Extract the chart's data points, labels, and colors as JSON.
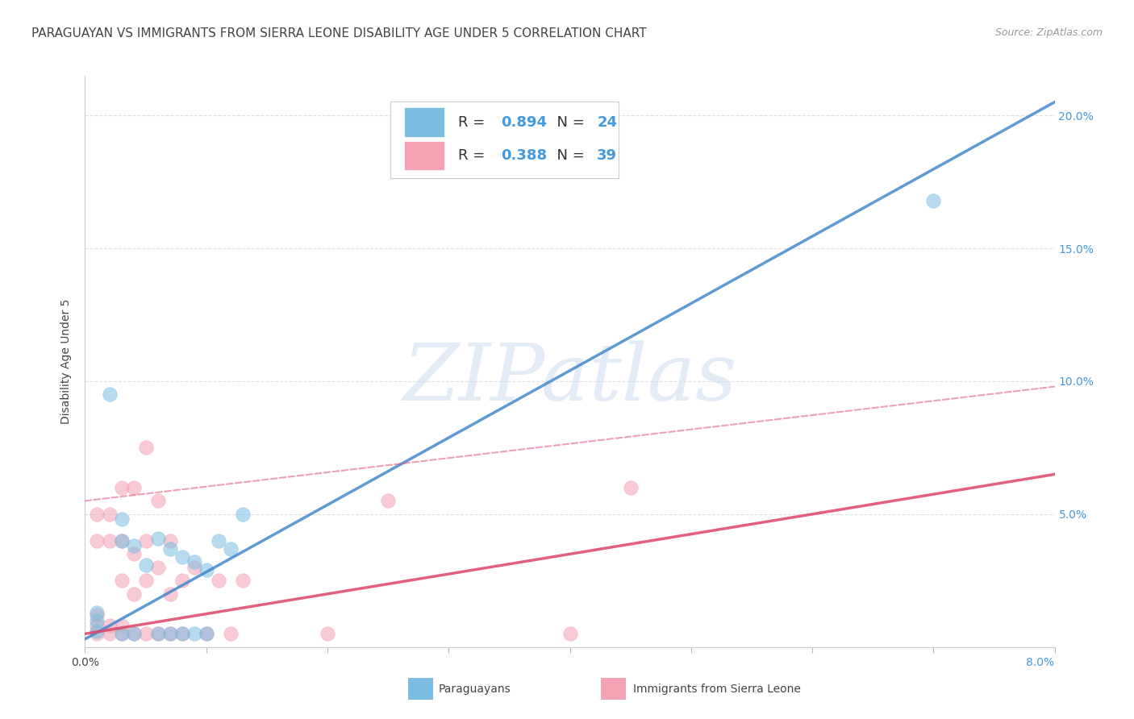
{
  "title": "PARAGUAYAN VS IMMIGRANTS FROM SIERRA LEONE DISABILITY AGE UNDER 5 CORRELATION CHART",
  "source": "Source: ZipAtlas.com",
  "ylabel": "Disability Age Under 5",
  "xlim": [
    0.0,
    0.08
  ],
  "ylim": [
    0.0,
    0.215
  ],
  "blue_R": "0.894",
  "blue_N": "24",
  "pink_R": "0.388",
  "pink_N": "39",
  "blue_color": "#7bbde0",
  "pink_color": "#f4a0b5",
  "blue_scatter_x": [
    0.001,
    0.001,
    0.001,
    0.002,
    0.003,
    0.003,
    0.004,
    0.005,
    0.006,
    0.007,
    0.008,
    0.009,
    0.01,
    0.011,
    0.012,
    0.013,
    0.003,
    0.004,
    0.006,
    0.007,
    0.008,
    0.009,
    0.01,
    0.07
  ],
  "blue_scatter_y": [
    0.006,
    0.01,
    0.013,
    0.095,
    0.04,
    0.048,
    0.038,
    0.031,
    0.041,
    0.037,
    0.034,
    0.032,
    0.029,
    0.04,
    0.037,
    0.05,
    0.005,
    0.005,
    0.005,
    0.005,
    0.005,
    0.005,
    0.005,
    0.168
  ],
  "pink_scatter_x": [
    0.001,
    0.001,
    0.001,
    0.001,
    0.001,
    0.002,
    0.002,
    0.002,
    0.002,
    0.003,
    0.003,
    0.003,
    0.003,
    0.003,
    0.004,
    0.004,
    0.004,
    0.004,
    0.005,
    0.005,
    0.005,
    0.005,
    0.006,
    0.006,
    0.006,
    0.007,
    0.007,
    0.007,
    0.008,
    0.008,
    0.009,
    0.01,
    0.011,
    0.012,
    0.013,
    0.02,
    0.025,
    0.04,
    0.045
  ],
  "pink_scatter_y": [
    0.005,
    0.008,
    0.012,
    0.04,
    0.05,
    0.005,
    0.008,
    0.04,
    0.05,
    0.005,
    0.008,
    0.025,
    0.04,
    0.06,
    0.005,
    0.02,
    0.035,
    0.06,
    0.005,
    0.025,
    0.04,
    0.075,
    0.005,
    0.03,
    0.055,
    0.005,
    0.02,
    0.04,
    0.005,
    0.025,
    0.03,
    0.005,
    0.025,
    0.005,
    0.025,
    0.005,
    0.055,
    0.005,
    0.06
  ],
  "blue_line_x": [
    0.0,
    0.08
  ],
  "blue_line_y": [
    0.003,
    0.205
  ],
  "pink_solid_line_x": [
    0.0,
    0.08
  ],
  "pink_solid_line_y": [
    0.005,
    0.065
  ],
  "pink_dashed_line_x": [
    0.0,
    0.08
  ],
  "pink_dashed_line_y": [
    0.055,
    0.098
  ],
  "right_ytick_vals": [
    0.0,
    0.05,
    0.1,
    0.15,
    0.2
  ],
  "right_yticklabels": [
    "",
    "5.0%",
    "10.0%",
    "15.0%",
    "20.0%"
  ],
  "xtick_vals": [
    0.0,
    0.01,
    0.02,
    0.03,
    0.04,
    0.05,
    0.06,
    0.07,
    0.08
  ],
  "watermark_text": "ZIPatlas",
  "grid_color": "#e0e0e0",
  "bg_color": "#ffffff",
  "blue_axis_color": "#4499dd",
  "text_color": "#444444",
  "source_color": "#999999",
  "title_fontsize": 11,
  "source_fontsize": 9,
  "tick_fontsize": 10,
  "legend_fontsize": 13,
  "scatter_size": 160,
  "scatter_alpha": 0.55,
  "line_alpha": 0.85
}
